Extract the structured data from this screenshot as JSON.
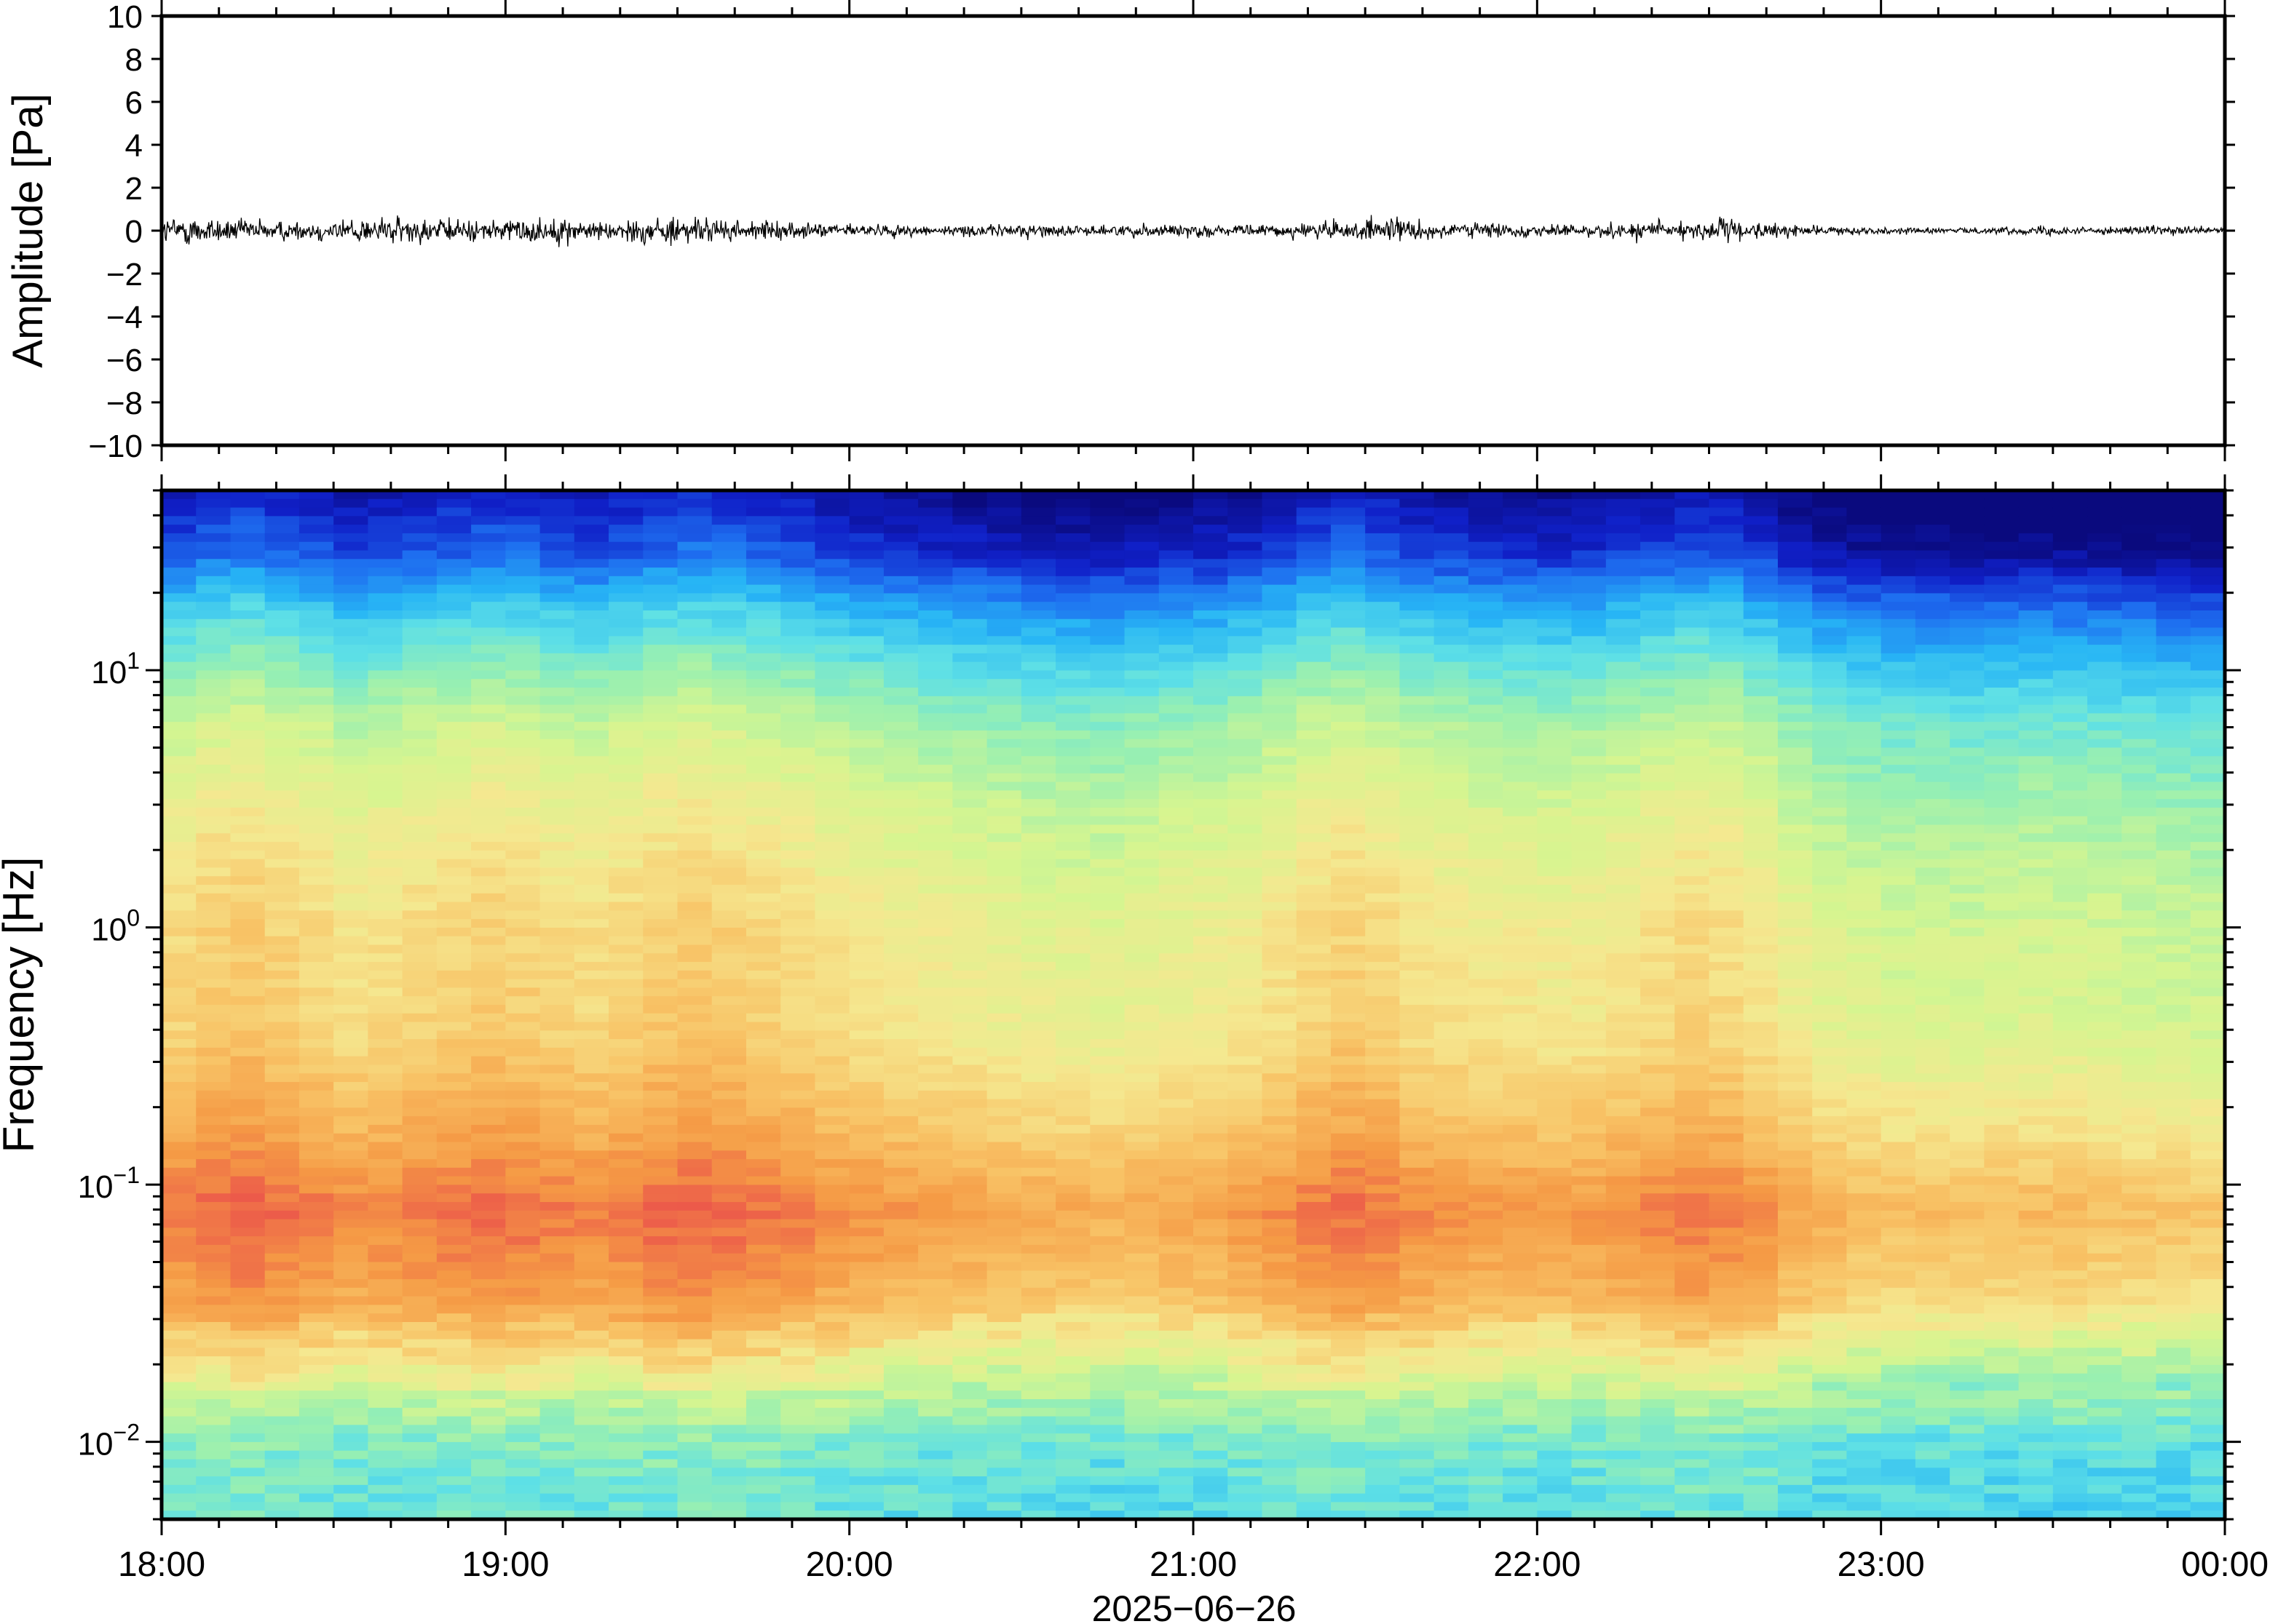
{
  "chart_data": [
    {
      "type": "line",
      "panel": "waveform",
      "ylabel": "Amplitude [Pa]",
      "ylim": [
        -10,
        10
      ],
      "yticks": [
        10,
        8,
        6,
        4,
        2,
        0,
        -2,
        -4,
        -6,
        -8,
        -10
      ],
      "ytick_labels": [
        "10",
        "8",
        "6",
        "4",
        "2",
        "0",
        "−2",
        "−4",
        "−6",
        "−8",
        "−10"
      ],
      "x_hours": [
        18,
        24
      ],
      "envelope_pa": [
        1.1,
        1.3,
        1.0,
        0.9,
        0.8,
        1.0,
        1.1,
        1.2,
        1.0,
        0.9,
        1.0,
        1.1,
        0.9,
        0.8,
        1.1,
        1.2,
        1.0,
        0.8,
        0.7,
        0.6,
        0.6,
        0.5,
        0.5,
        0.4,
        0.5,
        0.6,
        0.5,
        0.4,
        0.5,
        0.6,
        0.6,
        0.4,
        0.5,
        0.6,
        0.8,
        0.9,
        1.0,
        0.8,
        0.7,
        0.6,
        0.5,
        0.5,
        0.6,
        0.8,
        0.9,
        1.0,
        0.8,
        0.6,
        0.4,
        0.3,
        0.3,
        0.3,
        0.2,
        0.3,
        0.3,
        0.4,
        0.3,
        0.3,
        0.4,
        0.3,
        0.3
      ],
      "line_color": "#000000"
    },
    {
      "type": "heatmap",
      "panel": "spectrogram",
      "ylabel": "Frequency [Hz]",
      "yscale": "log",
      "ylim": [
        0.005,
        50
      ],
      "yticks": [
        10,
        1,
        0.1,
        0.01
      ],
      "ytick_labels": [
        {
          "base": "10",
          "exp": "1"
        },
        {
          "base": "10",
          "exp": "0"
        },
        {
          "base": "10",
          "exp": "−1"
        },
        {
          "base": "10",
          "exp": "−2"
        }
      ],
      "xlabel": "2025−06−26",
      "xticks": [
        "18:00",
        "19:00",
        "20:00",
        "21:00",
        "22:00",
        "23:00",
        "00:00"
      ],
      "x_hours": [
        18,
        24
      ],
      "colormap": [
        "#0a0a7e",
        "#1020c8",
        "#1e6ff0",
        "#27b5f5",
        "#5ee0e6",
        "#9af0b0",
        "#d6f590",
        "#f5e890",
        "#f8c265",
        "#f59a45",
        "#ec5a4a"
      ],
      "column_intensity": [
        0.55,
        0.6,
        0.62,
        0.58,
        0.55,
        0.5,
        0.52,
        0.55,
        0.57,
        0.6,
        0.58,
        0.55,
        0.53,
        0.56,
        0.6,
        0.62,
        0.6,
        0.57,
        0.54,
        0.5,
        0.48,
        0.45,
        0.43,
        0.42,
        0.4,
        0.38,
        0.37,
        0.36,
        0.38,
        0.4,
        0.42,
        0.45,
        0.5,
        0.55,
        0.58,
        0.55,
        0.5,
        0.48,
        0.46,
        0.45,
        0.44,
        0.45,
        0.48,
        0.52,
        0.55,
        0.53,
        0.48,
        0.4,
        0.35,
        0.32,
        0.3,
        0.3,
        0.29,
        0.3,
        0.31,
        0.3,
        0.29,
        0.28,
        0.27,
        0.26
      ]
    }
  ]
}
